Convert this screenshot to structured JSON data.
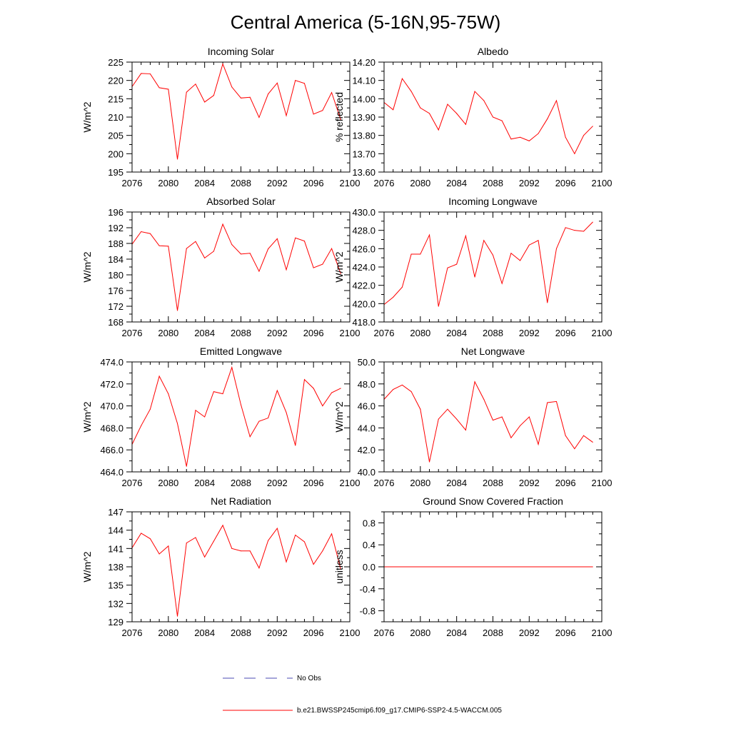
{
  "figure": {
    "title": "Central America (5-16N,95-75W)",
    "legend": [
      {
        "label": "No Obs",
        "style": "dashed",
        "color": "#4b4bb5"
      },
      {
        "label": "b.e21.BWSSP245cmip6.f09_g17.CMIP6-SSP2-4.5-WACCM.005",
        "style": "solid",
        "color": "#ff0000"
      }
    ],
    "line_color": "#ff0000"
  },
  "chart_data": [
    {
      "type": "line",
      "title": "Incoming Solar",
      "xlabel": "",
      "ylabel": "W/m^2",
      "xlim": [
        2076,
        2100
      ],
      "ylim": [
        195,
        225
      ],
      "xticks": [
        2076,
        2080,
        2084,
        2088,
        2092,
        2096,
        2100
      ],
      "yticks": [
        195,
        200,
        205,
        210,
        215,
        220,
        225
      ],
      "ydecimals": 0,
      "x": [
        2076,
        2077,
        2078,
        2079,
        2080,
        2081,
        2082,
        2083,
        2084,
        2085,
        2086,
        2087,
        2088,
        2089,
        2090,
        2091,
        2092,
        2093,
        2094,
        2095,
        2096,
        2097,
        2098,
        2099
      ],
      "values": [
        218.3,
        221.9,
        221.8,
        218.0,
        217.6,
        198.5,
        216.8,
        219.0,
        214.1,
        215.9,
        224.5,
        218.2,
        215.2,
        215.4,
        209.9,
        216.3,
        219.3,
        210.4,
        220.0,
        219.2,
        210.8,
        211.8,
        216.7,
        209.3
      ]
    },
    {
      "type": "line",
      "title": "Albedo",
      "xlabel": "",
      "ylabel": "% reflected",
      "xlim": [
        2076,
        2100
      ],
      "ylim": [
        13.6,
        14.2
      ],
      "xticks": [
        2076,
        2080,
        2084,
        2088,
        2092,
        2096,
        2100
      ],
      "yticks": [
        13.6,
        13.7,
        13.8,
        13.9,
        14.0,
        14.1,
        14.2
      ],
      "ydecimals": 2,
      "x": [
        2076,
        2077,
        2078,
        2079,
        2080,
        2081,
        2082,
        2083,
        2084,
        2085,
        2086,
        2087,
        2088,
        2089,
        2090,
        2091,
        2092,
        2093,
        2094,
        2095,
        2096,
        2097,
        2098,
        2099
      ],
      "values": [
        13.98,
        13.94,
        14.11,
        14.04,
        13.95,
        13.92,
        13.83,
        13.97,
        13.92,
        13.86,
        14.04,
        13.99,
        13.9,
        13.88,
        13.78,
        13.79,
        13.77,
        13.81,
        13.89,
        13.99,
        13.79,
        13.7,
        13.8,
        13.85
      ]
    },
    {
      "type": "line",
      "title": "Absorbed Solar",
      "xlabel": "",
      "ylabel": "W/m^2",
      "xlim": [
        2076,
        2100
      ],
      "ylim": [
        168,
        196
      ],
      "xticks": [
        2076,
        2080,
        2084,
        2088,
        2092,
        2096,
        2100
      ],
      "yticks": [
        168,
        172,
        176,
        180,
        184,
        188,
        192,
        196
      ],
      "ydecimals": 0,
      "x": [
        2076,
        2077,
        2078,
        2079,
        2080,
        2081,
        2082,
        2083,
        2084,
        2085,
        2086,
        2087,
        2088,
        2089,
        2090,
        2091,
        2092,
        2093,
        2094,
        2095,
        2096,
        2097,
        2098,
        2099
      ],
      "values": [
        187.8,
        191.0,
        190.5,
        187.4,
        187.3,
        170.9,
        186.7,
        188.5,
        184.3,
        186.0,
        192.9,
        187.7,
        185.3,
        185.5,
        180.9,
        186.6,
        189.2,
        181.3,
        189.4,
        188.6,
        181.8,
        182.7,
        186.7,
        180.3
      ]
    },
    {
      "type": "line",
      "title": "Incoming Longwave",
      "xlabel": "",
      "ylabel": "W/m^2",
      "xlim": [
        2076,
        2100
      ],
      "ylim": [
        418.0,
        430.0
      ],
      "xticks": [
        2076,
        2080,
        2084,
        2088,
        2092,
        2096,
        2100
      ],
      "yticks": [
        418.0,
        420.0,
        422.0,
        424.0,
        426.0,
        428.0,
        430.0
      ],
      "ydecimals": 1,
      "x": [
        2076,
        2077,
        2078,
        2079,
        2080,
        2081,
        2082,
        2083,
        2084,
        2085,
        2086,
        2087,
        2088,
        2089,
        2090,
        2091,
        2092,
        2093,
        2094,
        2095,
        2096,
        2097,
        2098,
        2099
      ],
      "values": [
        419.9,
        420.7,
        421.8,
        425.4,
        425.4,
        427.5,
        419.7,
        423.9,
        424.3,
        427.4,
        422.9,
        426.9,
        425.3,
        422.2,
        425.5,
        424.7,
        426.4,
        426.9,
        420.1,
        426.0,
        428.3,
        428.0,
        427.9,
        428.9
      ]
    },
    {
      "type": "line",
      "title": "Emitted Longwave",
      "xlabel": "",
      "ylabel": "W/m^2",
      "xlim": [
        2076,
        2100
      ],
      "ylim": [
        464.0,
        474.0
      ],
      "xticks": [
        2076,
        2080,
        2084,
        2088,
        2092,
        2096,
        2100
      ],
      "yticks": [
        464.0,
        466.0,
        468.0,
        470.0,
        472.0,
        474.0
      ],
      "ydecimals": 1,
      "x": [
        2076,
        2077,
        2078,
        2079,
        2080,
        2081,
        2082,
        2083,
        2084,
        2085,
        2086,
        2087,
        2088,
        2089,
        2090,
        2091,
        2092,
        2093,
        2094,
        2095,
        2096,
        2097,
        2098,
        2099
      ],
      "values": [
        466.5,
        468.2,
        469.7,
        472.7,
        471.1,
        468.4,
        464.5,
        469.6,
        469.0,
        471.3,
        471.1,
        473.5,
        470.1,
        467.2,
        468.6,
        468.9,
        471.4,
        469.4,
        466.4,
        472.4,
        471.6,
        470.0,
        471.2,
        471.6
      ]
    },
    {
      "type": "line",
      "title": "Net Longwave",
      "xlabel": "",
      "ylabel": "W/m^2",
      "xlim": [
        2076,
        2100
      ],
      "ylim": [
        40.0,
        50.0
      ],
      "xticks": [
        2076,
        2080,
        2084,
        2088,
        2092,
        2096,
        2100
      ],
      "yticks": [
        40.0,
        42.0,
        44.0,
        46.0,
        48.0,
        50.0
      ],
      "ydecimals": 1,
      "x": [
        2076,
        2077,
        2078,
        2079,
        2080,
        2081,
        2082,
        2083,
        2084,
        2085,
        2086,
        2087,
        2088,
        2089,
        2090,
        2091,
        2092,
        2093,
        2094,
        2095,
        2096,
        2097,
        2098,
        2099
      ],
      "values": [
        46.6,
        47.5,
        47.9,
        47.3,
        45.7,
        40.9,
        44.8,
        45.7,
        44.8,
        43.8,
        48.2,
        46.6,
        44.7,
        45.0,
        43.1,
        44.2,
        45.0,
        42.5,
        46.3,
        46.4,
        43.3,
        42.1,
        43.3,
        42.7
      ]
    },
    {
      "type": "line",
      "title": "Net Radiation",
      "xlabel": "",
      "ylabel": "W/m^2",
      "xlim": [
        2076,
        2100
      ],
      "ylim": [
        129,
        147
      ],
      "xticks": [
        2076,
        2080,
        2084,
        2088,
        2092,
        2096,
        2100
      ],
      "yticks": [
        129,
        132,
        135,
        138,
        141,
        144,
        147
      ],
      "ydecimals": 0,
      "x": [
        2076,
        2077,
        2078,
        2079,
        2080,
        2081,
        2082,
        2083,
        2084,
        2085,
        2086,
        2087,
        2088,
        2089,
        2090,
        2091,
        2092,
        2093,
        2094,
        2095,
        2096,
        2097,
        2098,
        2099
      ],
      "values": [
        141.1,
        143.5,
        142.6,
        140.1,
        141.4,
        129.9,
        141.9,
        142.8,
        139.6,
        142.2,
        144.8,
        141.0,
        140.6,
        140.6,
        137.8,
        142.3,
        144.3,
        138.8,
        143.2,
        142.1,
        138.4,
        140.6,
        143.4,
        137.6
      ]
    },
    {
      "type": "line",
      "title": "Ground Snow Covered Fraction",
      "xlabel": "",
      "ylabel": "unitless",
      "xlim": [
        2076,
        2100
      ],
      "ylim": [
        -1.0,
        1.0
      ],
      "xticks": [
        2076,
        2080,
        2084,
        2088,
        2092,
        2096,
        2100
      ],
      "yticks": [
        -0.8,
        -0.4,
        0.0,
        0.4,
        0.8
      ],
      "ydecimals": 1,
      "x": [
        2076,
        2077,
        2078,
        2079,
        2080,
        2081,
        2082,
        2083,
        2084,
        2085,
        2086,
        2087,
        2088,
        2089,
        2090,
        2091,
        2092,
        2093,
        2094,
        2095,
        2096,
        2097,
        2098,
        2099
      ],
      "values": [
        0,
        0,
        0,
        0,
        0,
        0,
        0,
        0,
        0,
        0,
        0,
        0,
        0,
        0,
        0,
        0,
        0,
        0,
        0,
        0,
        0,
        0,
        0,
        0
      ]
    }
  ]
}
